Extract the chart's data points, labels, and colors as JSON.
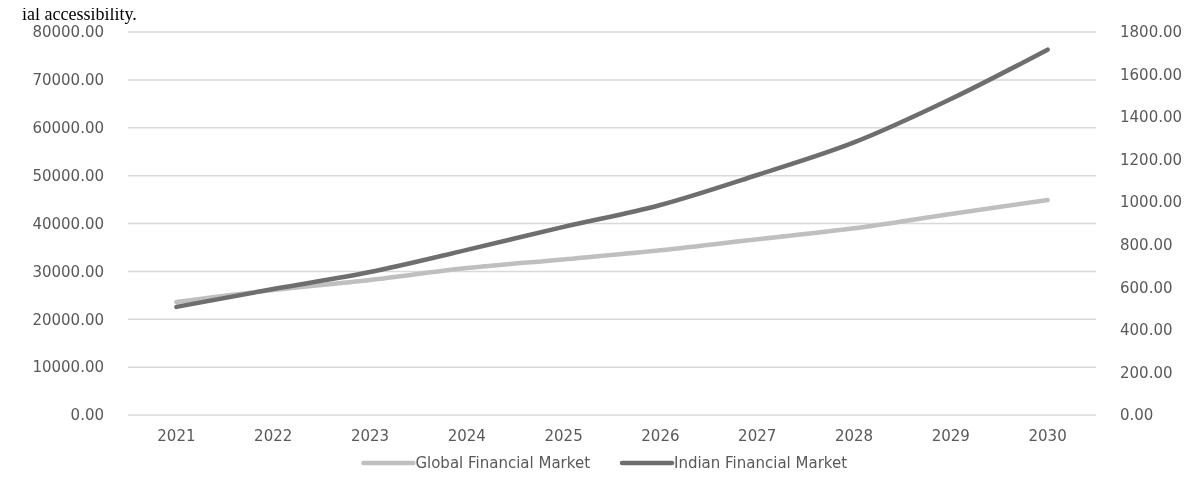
{
  "chart_data": {
    "type": "line",
    "categories": [
      "2021",
      "2022",
      "2023",
      "2024",
      "2025",
      "2026",
      "2027",
      "2028",
      "2029",
      "2030"
    ],
    "series": [
      {
        "name": "Global Financial Market",
        "color": "#bfbfbf",
        "values": [
          23600,
          26100,
          28200,
          30700,
          32500,
          34400,
          36700,
          39000,
          42000,
          44900
        ]
      },
      {
        "name": "Indian Financial Market",
        "color": "#6e6e6e",
        "axis": "y2",
        "values": [
          508,
          592,
          672,
          776,
          884,
          987,
          1128,
          1281,
          1485,
          1717
        ]
      }
    ],
    "ylim": [
      0,
      80000
    ],
    "yticks": [
      {
        "value": 0,
        "label": "0.00"
      },
      {
        "value": 10000,
        "label": "10000.00"
      },
      {
        "value": 20000,
        "label": "20000.00"
      },
      {
        "value": 30000,
        "label": "30000.00"
      },
      {
        "value": 40000,
        "label": "40000.00"
      },
      {
        "value": 50000,
        "label": "50000.00"
      },
      {
        "value": 60000,
        "label": "60000.00"
      },
      {
        "value": 70000,
        "label": "70000.00"
      },
      {
        "value": 80000,
        "label": "80000.00"
      }
    ],
    "y2lim": [
      0,
      1800
    ],
    "y2ticks": [
      {
        "value": 0,
        "label": "0.00"
      },
      {
        "value": 200,
        "label": "200.00"
      },
      {
        "value": 400,
        "label": "400.00"
      },
      {
        "value": 600,
        "label": "600.00"
      },
      {
        "value": 800,
        "label": "800.00"
      },
      {
        "value": 1000,
        "label": "1000.00"
      },
      {
        "value": 1200,
        "label": "1200.00"
      },
      {
        "value": 1400,
        "label": "1400.00"
      },
      {
        "value": 1600,
        "label": "1600.00"
      },
      {
        "value": 1800,
        "label": "1800.00"
      }
    ],
    "grid": "y",
    "legend": "bottom",
    "marker": "none",
    "line_style": "solid",
    "annotations": [
      "ial accessibility."
    ]
  }
}
